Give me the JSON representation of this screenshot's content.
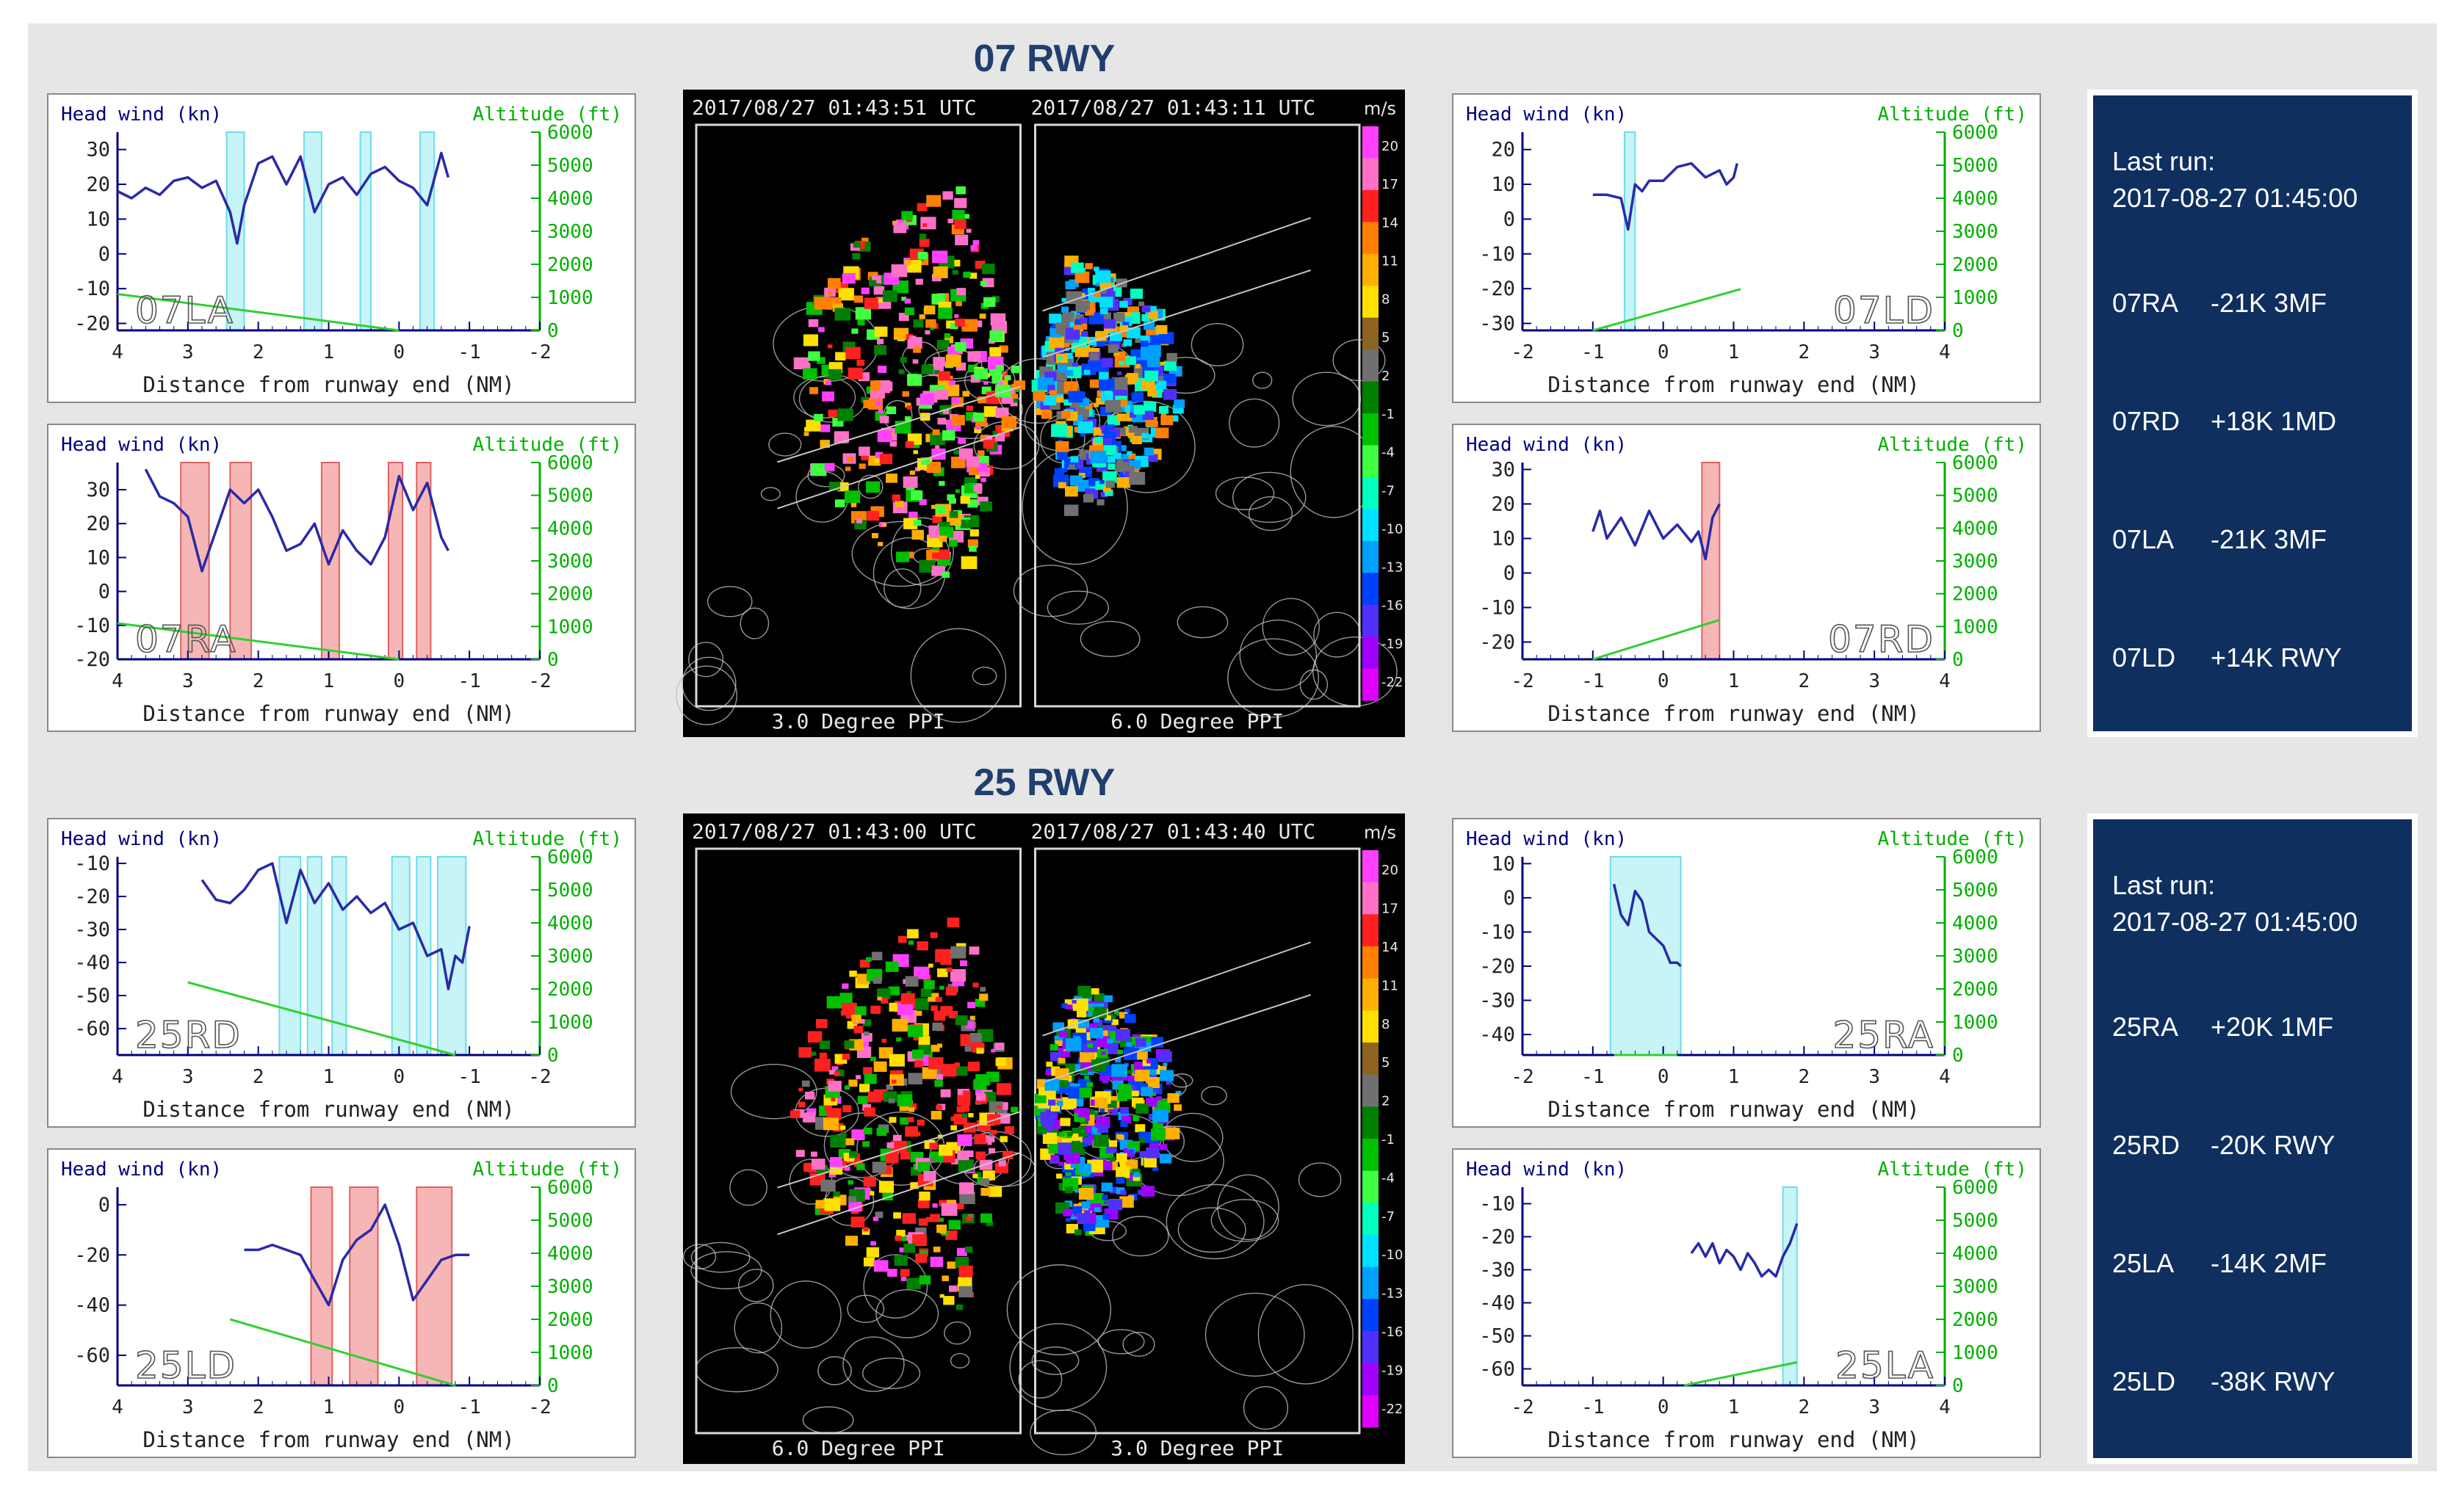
{
  "sections": [
    {
      "id": "07",
      "title": "07 RWY",
      "radar": {
        "left": {
          "timestamp": "2017/08/27   01:43:51 UTC",
          "caption": "3.0 Degree PPI"
        },
        "right": {
          "timestamp": "2017/08/27   01:43:11 UTC",
          "caption": "6.0 Degree PPI"
        }
      },
      "info": {
        "last_run_label": "Last run:",
        "last_run_time": "2017-08-27 01:45:00",
        "rows": [
          {
            "code": "07RA",
            "value": "-21K 3MF"
          },
          {
            "code": "07RD",
            "value": "+18K 1MD"
          },
          {
            "code": "07LA",
            "value": "-21K 3MF"
          },
          {
            "code": "07LD",
            "value": "+14K RWY"
          }
        ]
      }
    },
    {
      "id": "25",
      "title": "25 RWY",
      "radar": {
        "left": {
          "timestamp": "2017/08/27   01:43:00 UTC",
          "caption": "6.0 Degree PPI"
        },
        "right": {
          "timestamp": "2017/08/27   01:43:40 UTC",
          "caption": "3.0 Degree PPI"
        }
      },
      "info": {
        "last_run_label": "Last run:",
        "last_run_time": "2017-08-27 01:45:00",
        "rows": [
          {
            "code": "25RA",
            "value": "+20K 1MF"
          },
          {
            "code": "25RD",
            "value": "-20K RWY"
          },
          {
            "code": "25LA",
            "value": "-14K 2MF"
          },
          {
            "code": "25LD",
            "value": "-38K RWY"
          }
        ]
      }
    }
  ],
  "colorbar": {
    "unit": "m/s",
    "ticks": [
      "20",
      "17",
      "14",
      "11",
      "8",
      "5",
      "2",
      "-1",
      "-4",
      "-7",
      "-10",
      "-13",
      "-16",
      "-19",
      "-22"
    ],
    "colors": [
      "#ff40ff",
      "#ff70c8",
      "#ff2020",
      "#ff8000",
      "#ffb000",
      "#ffe000",
      "#8c6420",
      "#707070",
      "#008000",
      "#00c000",
      "#40ff40",
      "#00ffc0",
      "#00e0ff",
      "#00a0ff",
      "#0040ff",
      "#5030ff",
      "#a000ff",
      "#e000ff"
    ]
  },
  "chart_data": [
    {
      "type": "line",
      "name_tag": "07LA",
      "panel": "07 RWY top-left",
      "xlabel": "Distance from runway end (NM)",
      "ylabel": "Head wind (kn)",
      "y2label": "Altitude (ft)",
      "xlim": [
        4,
        -2
      ],
      "ylim": [
        -22,
        35
      ],
      "y2lim": [
        0,
        6000
      ],
      "xticks": [
        "4",
        "3",
        "2",
        "1",
        "0",
        "-1",
        "-2"
      ],
      "yticks": [
        "30",
        "20",
        "10",
        "0",
        "-10",
        "-20"
      ],
      "y2ticks": [
        "6000",
        "5000",
        "4000",
        "3000",
        "2000",
        "1000",
        "0"
      ],
      "headwind": {
        "x": [
          4.0,
          3.8,
          3.6,
          3.4,
          3.2,
          3.0,
          2.8,
          2.6,
          2.4,
          2.3,
          2.2,
          2.0,
          1.8,
          1.6,
          1.4,
          1.2,
          1.0,
          0.8,
          0.6,
          0.4,
          0.2,
          0.0,
          -0.2,
          -0.4,
          -0.6,
          -0.7
        ],
        "y": [
          18,
          16,
          19,
          17,
          21,
          22,
          19,
          21,
          12,
          3,
          14,
          26,
          28,
          20,
          28,
          12,
          20,
          22,
          17,
          23,
          25,
          21,
          19,
          14,
          29,
          22
        ]
      },
      "altitude": {
        "x": [
          4.0,
          0.0
        ],
        "y": [
          1100,
          0
        ]
      },
      "shaded": [
        [
          2.45,
          2.2
        ],
        [
          1.35,
          1.1
        ],
        [
          0.55,
          0.4
        ],
        [
          -0.3,
          -0.5
        ]
      ],
      "shade_color": "cyan"
    },
    {
      "type": "line",
      "name_tag": "07RA",
      "panel": "07 RWY middle-left",
      "xlabel": "Distance from runway end (NM)",
      "ylabel": "Head wind (kn)",
      "y2label": "Altitude (ft)",
      "xlim": [
        4,
        -2
      ],
      "ylim": [
        -20,
        38
      ],
      "y2lim": [
        0,
        6000
      ],
      "xticks": [
        "4",
        "3",
        "2",
        "1",
        "0",
        "-1",
        "-2"
      ],
      "yticks": [
        "30",
        "20",
        "10",
        "0",
        "-10",
        "-20"
      ],
      "y2ticks": [
        "6000",
        "5000",
        "4000",
        "3000",
        "2000",
        "1000",
        "0"
      ],
      "headwind": {
        "x": [
          3.6,
          3.4,
          3.2,
          3.0,
          2.8,
          2.6,
          2.4,
          2.2,
          2.0,
          1.8,
          1.6,
          1.4,
          1.2,
          1.0,
          0.8,
          0.6,
          0.4,
          0.2,
          0.0,
          -0.2,
          -0.4,
          -0.6,
          -0.7
        ],
        "y": [
          36,
          28,
          26,
          22,
          6,
          18,
          30,
          26,
          30,
          22,
          12,
          14,
          20,
          8,
          18,
          12,
          8,
          16,
          34,
          24,
          32,
          16,
          12
        ]
      },
      "altitude": {
        "x": [
          4.0,
          0.0
        ],
        "y": [
          1100,
          0
        ]
      },
      "shaded": [
        [
          3.1,
          2.7
        ],
        [
          2.4,
          2.1
        ],
        [
          1.1,
          0.85
        ],
        [
          0.15,
          -0.05
        ],
        [
          -0.25,
          -0.45
        ]
      ],
      "shade_color": "red"
    },
    {
      "type": "line",
      "name_tag": "07LD",
      "panel": "07 RWY top-right",
      "xlabel": "Distance from runway end (NM)",
      "ylabel": "Head wind (kn)",
      "y2label": "Altitude (ft)",
      "xlim": [
        -2,
        4
      ],
      "ylim": [
        -32,
        25
      ],
      "y2lim": [
        0,
        6000
      ],
      "xticks": [
        "-2",
        "-1",
        "0",
        "1",
        "2",
        "3",
        "4"
      ],
      "yticks": [
        "20",
        "10",
        "0",
        "-10",
        "-20",
        "-30"
      ],
      "y2ticks": [
        "6000",
        "5000",
        "4000",
        "3000",
        "2000",
        "1000",
        "0"
      ],
      "headwind": {
        "x": [
          -1.0,
          -0.8,
          -0.6,
          -0.5,
          -0.4,
          -0.3,
          -0.2,
          0.0,
          0.2,
          0.4,
          0.6,
          0.8,
          0.9,
          1.0,
          1.05
        ],
        "y": [
          7,
          7,
          6,
          -3,
          10,
          8,
          11,
          11,
          15,
          16,
          12,
          14,
          10,
          12,
          16
        ]
      },
      "altitude": {
        "x": [
          -1.0,
          1.1
        ],
        "y": [
          0,
          1250
        ]
      },
      "shaded": [
        [
          -0.55,
          -0.4
        ]
      ],
      "shade_color": "cyan"
    },
    {
      "type": "line",
      "name_tag": "07RD",
      "panel": "07 RWY middle-right",
      "xlabel": "Distance from runway end (NM)",
      "ylabel": "Head wind (kn)",
      "y2label": "Altitude (ft)",
      "xlim": [
        -2,
        4
      ],
      "ylim": [
        -25,
        32
      ],
      "y2lim": [
        0,
        6000
      ],
      "xticks": [
        "-2",
        "-1",
        "0",
        "1",
        "2",
        "3",
        "4"
      ],
      "yticks": [
        "30",
        "20",
        "10",
        "0",
        "-10",
        "-20"
      ],
      "y2ticks": [
        "6000",
        "5000",
        "4000",
        "3000",
        "2000",
        "1000",
        "0"
      ],
      "headwind": {
        "x": [
          -1.0,
          -0.9,
          -0.8,
          -0.6,
          -0.4,
          -0.2,
          0.0,
          0.2,
          0.4,
          0.5,
          0.6,
          0.7,
          0.8
        ],
        "y": [
          12,
          18,
          10,
          16,
          8,
          18,
          10,
          14,
          9,
          12,
          4,
          16,
          20
        ]
      },
      "altitude": {
        "x": [
          -1.0,
          0.8
        ],
        "y": [
          0,
          1200
        ]
      },
      "shaded": [
        [
          0.55,
          0.8
        ]
      ],
      "shade_color": "red"
    },
    {
      "type": "line",
      "name_tag": "25RD",
      "panel": "25 RWY top-left",
      "xlabel": "Distance from runway end (NM)",
      "ylabel": "Head wind (kn)",
      "y2label": "Altitude (ft)",
      "xlim": [
        4,
        -2
      ],
      "ylim": [
        -68,
        -8
      ],
      "y2lim": [
        0,
        6000
      ],
      "xticks": [
        "4",
        "3",
        "2",
        "1",
        "0",
        "-1",
        "-2"
      ],
      "yticks": [
        "-10",
        "-20",
        "-30",
        "-40",
        "-50",
        "-60"
      ],
      "y2ticks": [
        "6000",
        "5000",
        "4000",
        "3000",
        "2000",
        "1000",
        "0"
      ],
      "headwind": {
        "x": [
          2.8,
          2.6,
          2.4,
          2.2,
          2.0,
          1.8,
          1.6,
          1.4,
          1.2,
          1.0,
          0.8,
          0.6,
          0.4,
          0.2,
          0.0,
          -0.2,
          -0.4,
          -0.6,
          -0.7,
          -0.8,
          -0.9,
          -1.0
        ],
        "y": [
          -15,
          -21,
          -22,
          -18,
          -12,
          -10,
          -28,
          -12,
          -22,
          -16,
          -24,
          -20,
          -25,
          -22,
          -30,
          -28,
          -38,
          -36,
          -48,
          -38,
          -40,
          -29
        ]
      },
      "altitude": {
        "x": [
          3.0,
          -0.8
        ],
        "y": [
          2200,
          0
        ]
      },
      "shaded": [
        [
          1.7,
          1.4
        ],
        [
          1.3,
          1.1
        ],
        [
          0.95,
          0.75
        ],
        [
          0.1,
          -0.15
        ],
        [
          -0.25,
          -0.45
        ],
        [
          -0.55,
          -0.95
        ]
      ],
      "shade_color": "cyan"
    },
    {
      "type": "line",
      "name_tag": "25LD",
      "panel": "25 RWY bottom-left",
      "xlabel": "Distance from runway end (NM)",
      "ylabel": "Head wind (kn)",
      "y2label": "Altitude (ft)",
      "xlim": [
        4,
        -2
      ],
      "ylim": [
        -72,
        7
      ],
      "y2lim": [
        0,
        6000
      ],
      "xticks": [
        "4",
        "3",
        "2",
        "1",
        "0",
        "-1",
        "-2"
      ],
      "yticks": [
        "0",
        "-20",
        "-40",
        "-60"
      ],
      "y2ticks": [
        "6000",
        "5000",
        "4000",
        "3000",
        "2000",
        "1000",
        "0"
      ],
      "headwind": {
        "x": [
          2.2,
          2.0,
          1.8,
          1.6,
          1.4,
          1.2,
          1.0,
          0.8,
          0.6,
          0.4,
          0.2,
          0.0,
          -0.2,
          -0.4,
          -0.6,
          -0.8,
          -1.0
        ],
        "y": [
          -18,
          -18,
          -16,
          -18,
          -20,
          -30,
          -40,
          -22,
          -14,
          -10,
          0,
          -16,
          -38,
          -30,
          -22,
          -20,
          -20
        ]
      },
      "altitude": {
        "x": [
          2.4,
          -0.8
        ],
        "y": [
          2000,
          0
        ]
      },
      "shaded": [
        [
          1.25,
          0.95
        ],
        [
          0.7,
          0.3
        ],
        [
          -0.25,
          -0.75
        ]
      ],
      "shade_color": "red"
    },
    {
      "type": "line",
      "name_tag": "25RA",
      "panel": "25 RWY top-right",
      "xlabel": "Distance from runway end (NM)",
      "ylabel": "Head wind (kn)",
      "y2label": "Altitude (ft)",
      "xlim": [
        -2,
        4
      ],
      "ylim": [
        -46,
        12
      ],
      "y2lim": [
        0,
        6000
      ],
      "xticks": [
        "-2",
        "-1",
        "0",
        "1",
        "2",
        "3",
        "4"
      ],
      "yticks": [
        "10",
        "0",
        "-10",
        "-20",
        "-30",
        "-40"
      ],
      "y2ticks": [
        "6000",
        "5000",
        "4000",
        "3000",
        "2000",
        "1000",
        "0"
      ],
      "headwind": {
        "x": [
          -0.7,
          -0.6,
          -0.5,
          -0.4,
          -0.3,
          -0.2,
          -0.1,
          0.0,
          0.1,
          0.2,
          0.25
        ],
        "y": [
          4,
          -5,
          -8,
          2,
          -1,
          -10,
          -12,
          -14,
          -19,
          -19,
          -20
        ]
      },
      "altitude": {
        "x": [
          -0.7,
          0.2
        ],
        "y": [
          0,
          0
        ]
      },
      "shaded": [
        [
          -0.75,
          0.25
        ]
      ],
      "shade_color": "cyan"
    },
    {
      "type": "line",
      "name_tag": "25LA",
      "panel": "25 RWY bottom-right",
      "xlabel": "Distance from runway end (NM)",
      "ylabel": "Head wind (kn)",
      "y2label": "Altitude (ft)",
      "xlim": [
        -2,
        4
      ],
      "ylim": [
        -65,
        -5
      ],
      "y2lim": [
        0,
        6000
      ],
      "xticks": [
        "-2",
        "-1",
        "0",
        "1",
        "2",
        "3",
        "4"
      ],
      "yticks": [
        "-10",
        "-20",
        "-30",
        "-40",
        "-50",
        "-60"
      ],
      "y2ticks": [
        "6000",
        "5000",
        "4000",
        "3000",
        "2000",
        "1000",
        "0"
      ],
      "headwind": {
        "x": [
          0.4,
          0.5,
          0.6,
          0.7,
          0.8,
          0.9,
          1.0,
          1.1,
          1.2,
          1.3,
          1.4,
          1.5,
          1.6,
          1.7,
          1.8,
          1.9
        ],
        "y": [
          -25,
          -22,
          -26,
          -22,
          -28,
          -24,
          -26,
          -30,
          -25,
          -28,
          -32,
          -30,
          -32,
          -26,
          -22,
          -16
        ]
      },
      "altitude": {
        "x": [
          0.3,
          1.9
        ],
        "y": [
          0,
          700
        ]
      },
      "shaded": [
        [
          1.7,
          1.9
        ]
      ],
      "shade_color": "cyan"
    }
  ]
}
